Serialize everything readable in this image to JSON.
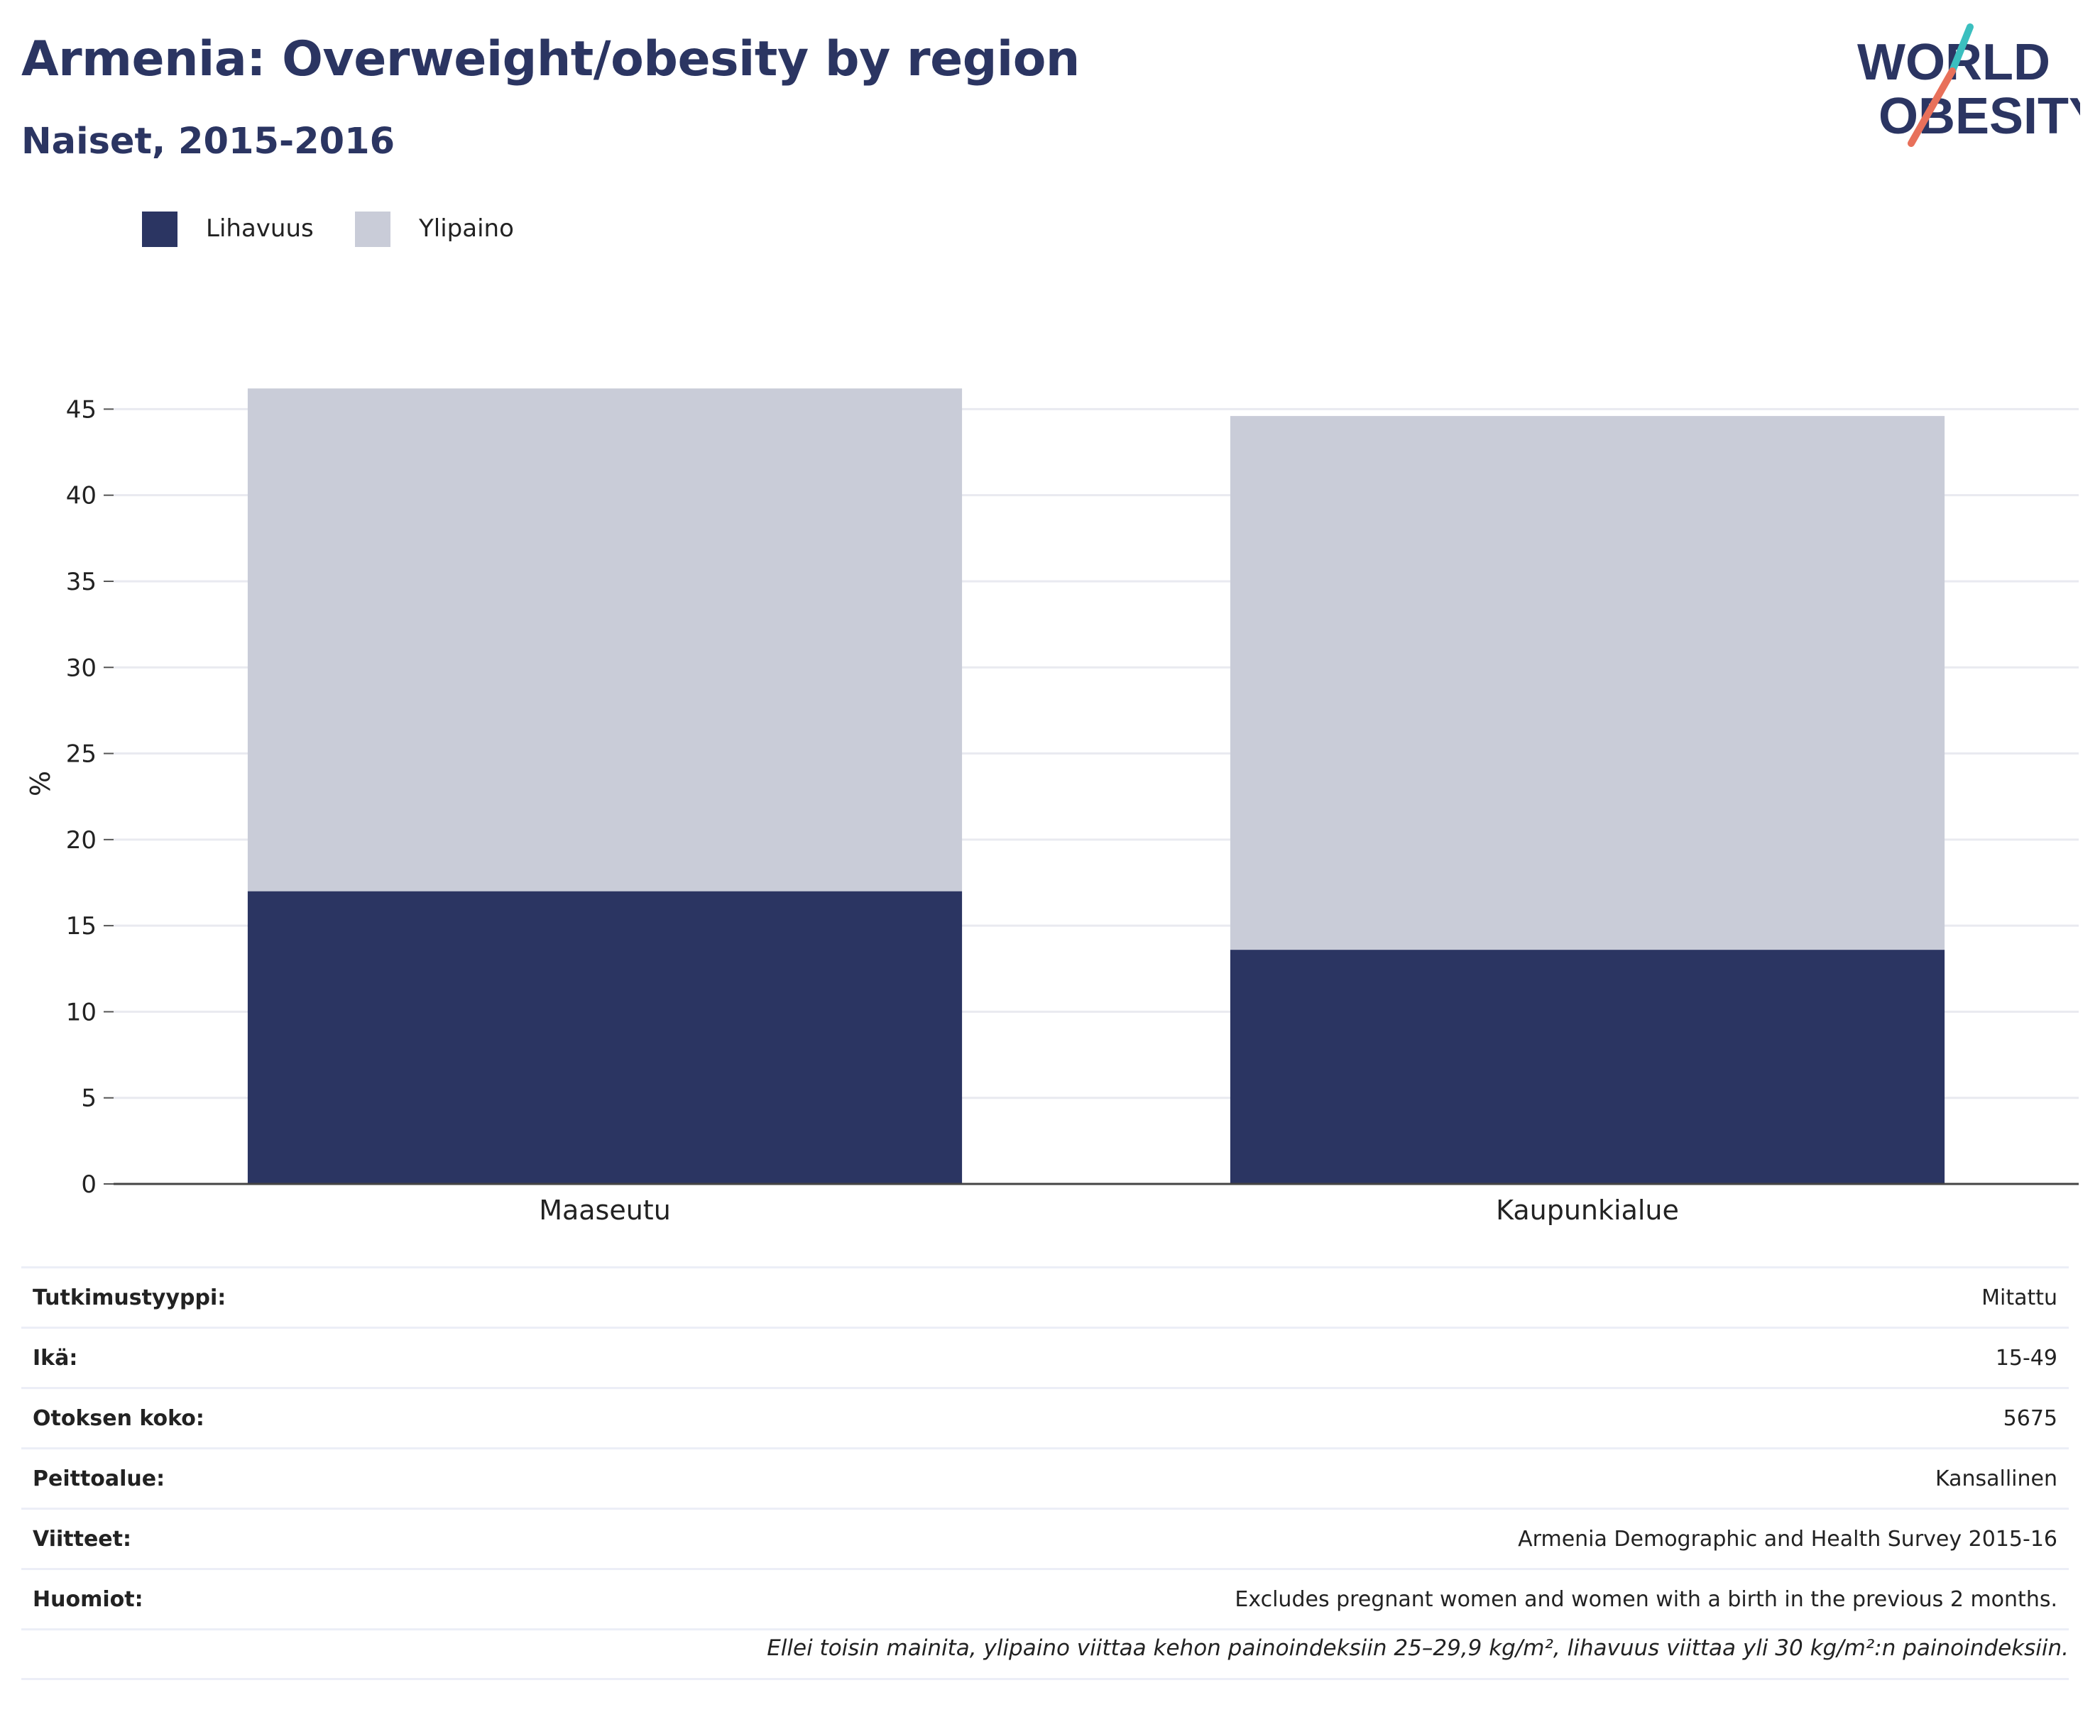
{
  "header": {
    "title": "Armenia: Overweight/obesity by region",
    "subtitle": "Naiset, 2015-2016"
  },
  "logo": {
    "line1": "WORLD",
    "line2": "OBESITY",
    "colors": {
      "text": "#2b3562",
      "slash_top": "#3bbfbf",
      "slash_bottom": "#e8705a"
    }
  },
  "legend": [
    {
      "label": "Lihavuus",
      "color": "#2b3562"
    },
    {
      "label": "Ylipaino",
      "color": "#c9ccd8"
    }
  ],
  "chart_data": {
    "type": "bar",
    "stacked": true,
    "categories": [
      "Maaseutu",
      "Kaupunkialue"
    ],
    "series": [
      {
        "name": "Lihavuus",
        "values": [
          17.0,
          13.6
        ],
        "color": "#2b3562"
      },
      {
        "name": "Ylipaino",
        "values": [
          29.2,
          31.0
        ],
        "color": "#c9ccd8"
      }
    ],
    "ylabel": "%",
    "xlabel": "",
    "ylim": [
      0,
      46.5
    ],
    "yticks": [
      0,
      5,
      10,
      15,
      20,
      25,
      30,
      35,
      40,
      45
    ],
    "grid": true,
    "legend_position": "top-left"
  },
  "info": [
    {
      "key": "Tutkimustyyppi:",
      "value": "Mitattu"
    },
    {
      "key": "Ikä:",
      "value": "15-49"
    },
    {
      "key": "Otoksen koko:",
      "value": "5675"
    },
    {
      "key": "Peittoalue:",
      "value": "Kansallinen"
    },
    {
      "key": "Viitteet:",
      "value": "Armenia Demographic and Health Survey 2015-16"
    },
    {
      "key": "Huomiot:",
      "value": "Excludes pregnant women and women with a birth in the previous 2 months."
    }
  ],
  "footnote": "Ellei toisin mainita, ylipaino viittaa kehon painoindeksiin 25–29,9 kg/m², lihavuus viittaa yli 30 kg/m²:n painoindeksiin."
}
